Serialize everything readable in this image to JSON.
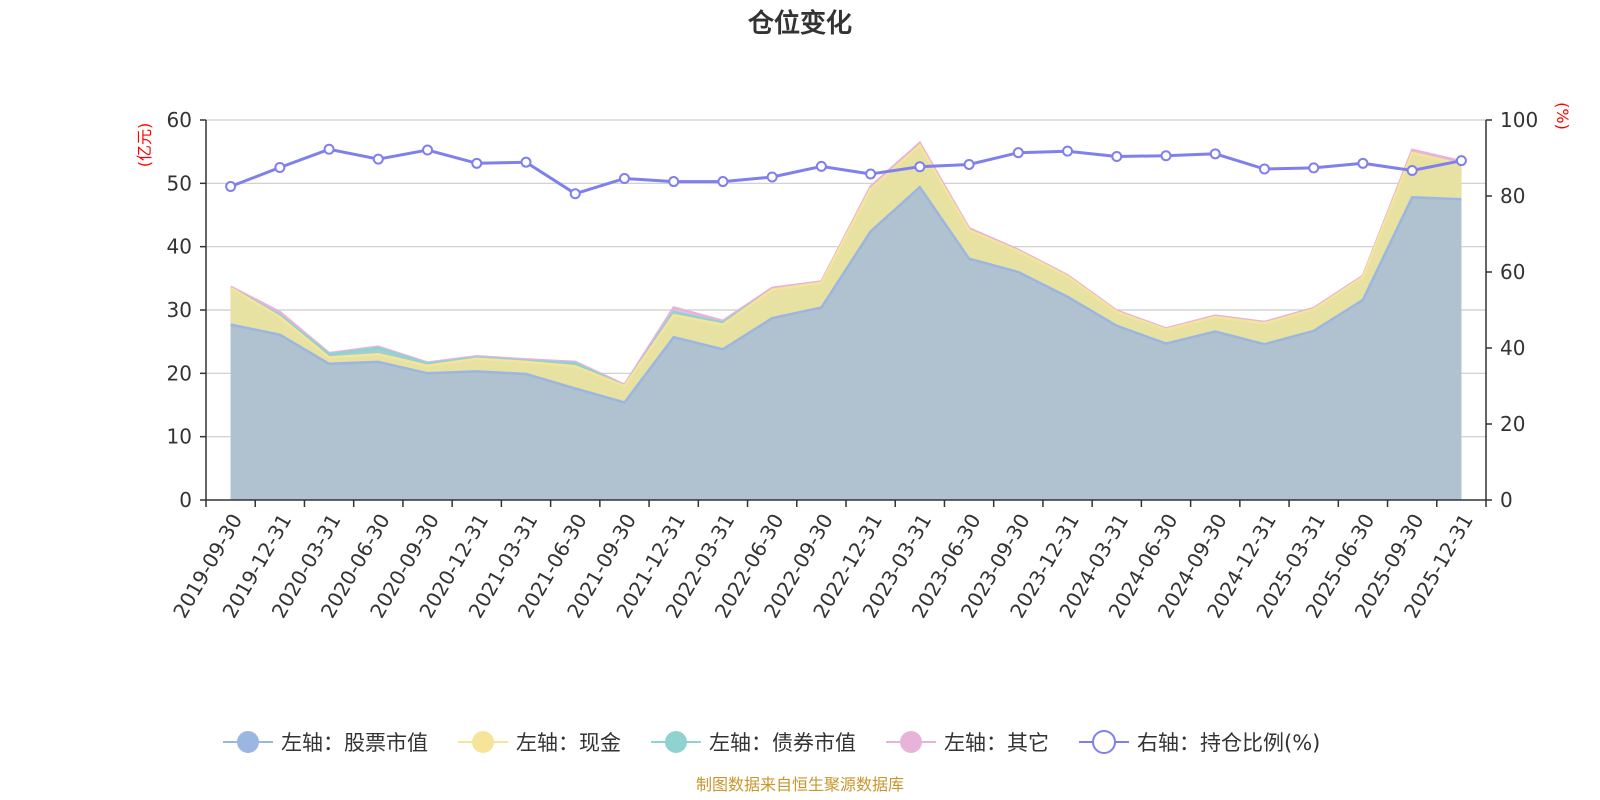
{
  "chart_data": {
    "type": "area",
    "title": "仓位变化",
    "categories": [
      "2019-09-30",
      "2019-12-31",
      "2020-03-31",
      "2020-06-30",
      "2020-09-30",
      "2020-12-31",
      "2021-03-31",
      "2021-06-30",
      "2021-09-30",
      "2021-12-31",
      "2022-03-31",
      "2022-06-30",
      "2022-09-30",
      "2022-12-31",
      "2023-03-31",
      "2023-06-30",
      "2023-09-30",
      "2023-12-31",
      "2024-03-31",
      "2024-06-30",
      "2024-09-30",
      "2024-12-31",
      "2025-03-31",
      "2025-06-30",
      "2025-09-30",
      "2025-12-31"
    ],
    "left_axis": {
      "unit": "(亿元)",
      "range": [
        0,
        60
      ],
      "ticks": [
        "0",
        "10",
        "20",
        "30",
        "40",
        "50",
        "60"
      ]
    },
    "right_axis": {
      "unit": "(%)",
      "range": [
        0,
        100
      ],
      "ticks": [
        "0",
        "20",
        "40",
        "60",
        "80",
        "100"
      ]
    },
    "series": [
      {
        "name": "左轴：股票市值",
        "axis": "left",
        "stacked": true,
        "color": "#9bb6e0",
        "values": [
          27.7,
          26.1,
          21.5,
          21.8,
          20.0,
          20.3,
          19.9,
          17.6,
          15.4,
          25.7,
          23.8,
          28.7,
          30.4,
          42.4,
          49.4,
          38.1,
          36.0,
          32.1,
          27.5,
          24.7,
          26.6,
          24.6,
          26.7,
          31.6,
          47.8,
          47.5
        ]
      },
      {
        "name": "左轴：现金",
        "axis": "left",
        "stacked": true,
        "color": "#f5e49a",
        "values": [
          5.8,
          2.8,
          1.0,
          1.2,
          1.2,
          2.0,
          1.9,
          3.5,
          2.6,
          3.5,
          3.9,
          4.5,
          3.9,
          6.7,
          6.6,
          4.5,
          3.3,
          3.2,
          2.2,
          2.2,
          2.3,
          3.3,
          3.4,
          3.6,
          7.0,
          5.5
        ]
      },
      {
        "name": "左轴：债券市值",
        "axis": "left",
        "stacked": true,
        "color": "#8fd3d0",
        "values": [
          0.0,
          0.3,
          0.5,
          1.0,
          0.3,
          0.2,
          0.2,
          0.5,
          0.0,
          0.5,
          0.3,
          0.0,
          0.0,
          0.0,
          0.0,
          0.0,
          0.0,
          0.0,
          0.0,
          0.0,
          0.0,
          0.0,
          0.0,
          0.0,
          0.0,
          0.0
        ]
      },
      {
        "name": "左轴：其它",
        "axis": "left",
        "stacked": true,
        "color": "#e7b3d9",
        "values": [
          0.2,
          0.5,
          0.2,
          0.2,
          0.2,
          0.2,
          0.2,
          0.2,
          0.2,
          0.7,
          0.3,
          0.3,
          0.2,
          0.4,
          0.4,
          0.3,
          0.2,
          0.2,
          0.2,
          0.2,
          0.2,
          0.2,
          0.2,
          0.2,
          0.5,
          0.5
        ]
      },
      {
        "name": "右轴：持仓比例(%)",
        "axis": "right",
        "type": "line",
        "color": "#7f7fee",
        "values": [
          82.5,
          87.5,
          92.3,
          89.7,
          92.1,
          88.6,
          88.9,
          80.6,
          84.6,
          83.8,
          83.8,
          85.0,
          87.8,
          85.8,
          87.7,
          88.3,
          91.4,
          91.8,
          90.4,
          90.6,
          91.1,
          87.1,
          87.4,
          88.6,
          86.7,
          89.3
        ]
      }
    ],
    "legend_position": "bottom"
  },
  "footer": {
    "source": "制图数据来自恒生聚源数据库"
  }
}
